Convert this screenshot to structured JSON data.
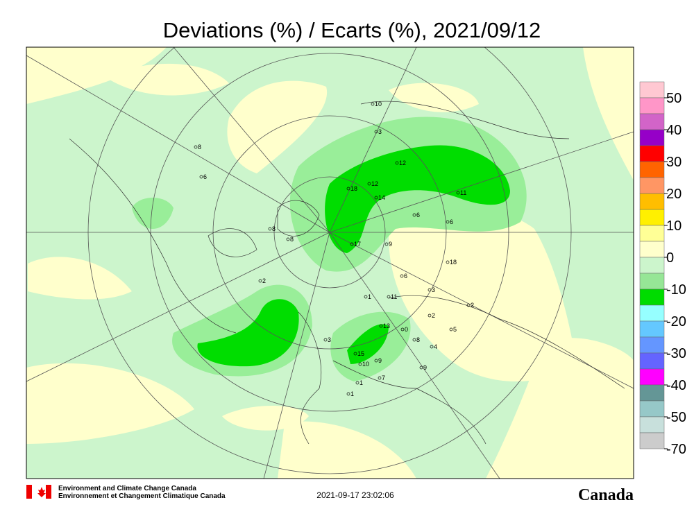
{
  "header": {
    "title": "Deviations (%) / Ecarts (%), 2021/09/12"
  },
  "legend": {
    "labels": [
      50,
      40,
      30,
      20,
      10,
      0,
      -10,
      -20,
      -30,
      -40,
      -50,
      -70
    ]
  },
  "stations": [
    "10",
    "3",
    "8",
    "6",
    "12",
    "12",
    "18",
    "14",
    "11",
    "6",
    "6",
    "8",
    "8",
    "17",
    "9",
    "18",
    "2",
    "6",
    "3",
    "1",
    "11",
    "2",
    "2",
    "13",
    "0",
    "5",
    "3",
    "8",
    "4",
    "15",
    "9",
    "10",
    "9",
    "7",
    "1",
    "1"
  ],
  "footer": {
    "agency_en": "Environment and Climate Change Canada",
    "agency_fr": "Environnement et Changement Climatique Canada",
    "timestamp": "2021-09-17 23:02:06",
    "wordmark": "Canada"
  }
}
